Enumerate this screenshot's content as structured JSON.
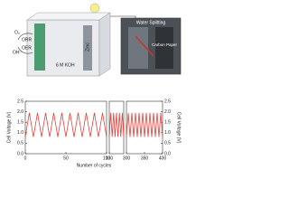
{
  "illustration": {
    "left": [
      "O₂",
      "OH⁻",
      "ORR",
      "OER",
      "6 M KOH",
      "Zinc"
    ],
    "right": [
      "Water Splitting",
      "Carbon Paper"
    ]
  },
  "chart_data": {
    "type": "line",
    "ylabel": "Cell Voltage (V)",
    "y2label": "Cell Voltage (V)",
    "xlabel": "Number of cycles",
    "xlim": [
      [
        0,
        100
      ],
      [
        130,
        180
      ],
      [
        300,
        400
      ]
    ],
    "xticks": [
      0,
      50,
      100,
      130,
      300,
      350,
      400
    ],
    "ylim": [
      0,
      2.5
    ],
    "yticks": [
      {
        "value": 0,
        "label": "0.0"
      },
      0.5,
      {
        "value": 1,
        "label": "1.0"
      },
      1.5,
      {
        "value": 2,
        "label": "2.0"
      },
      2.5
    ],
    "y2lim": [
      0,
      2.5
    ],
    "y2ticks": [
      {
        "value": 0,
        "label": "0.0"
      },
      0.5,
      {
        "value": 1,
        "label": "1.0"
      },
      1.5,
      {
        "value": 2,
        "label": "2.0"
      },
      2.5
    ],
    "series": [
      {
        "color": "#e8413c",
        "x": [
          0,
          5,
          10,
          15,
          20,
          25,
          30,
          35,
          40,
          45,
          50,
          55,
          60,
          65,
          70,
          75,
          80,
          85,
          90,
          95,
          100,
          115,
          130,
          135,
          140,
          145,
          150,
          155,
          160,
          165,
          170,
          175,
          180,
          240,
          300,
          305,
          310,
          315,
          320,
          325,
          330,
          335,
          340,
          345,
          350,
          355,
          360,
          365,
          370,
          375,
          380,
          385,
          390,
          395,
          400
        ],
        "values": [
          0.8,
          1.95,
          0.8,
          1.95,
          0.8,
          1.95,
          0.8,
          1.95,
          0.8,
          1.95,
          0.8,
          1.95,
          0.8,
          1.95,
          0.8,
          1.95,
          0.8,
          1.95,
          0.8,
          1.95,
          0.8,
          null,
          0.8,
          1.95,
          0.8,
          1.95,
          0.8,
          1.95,
          0.8,
          1.95,
          0.8,
          1.95,
          0.8,
          null,
          0.8,
          1.95,
          0.8,
          1.95,
          0.8,
          1.95,
          0.8,
          1.95,
          0.8,
          1.95,
          0.8,
          1.95,
          0.8,
          1.95,
          0.8,
          1.95,
          0.8,
          1.95,
          0.8,
          1.95,
          0.8
        ]
      }
    ]
  }
}
